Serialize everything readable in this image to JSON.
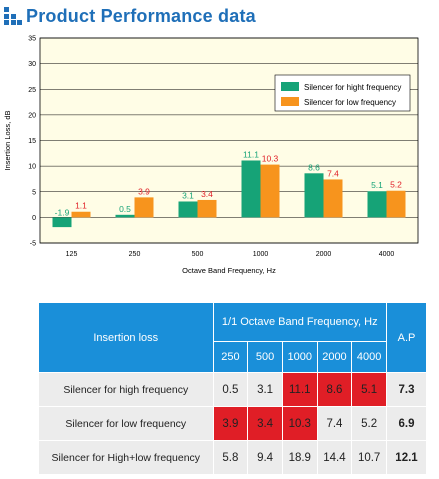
{
  "page": {
    "title": "Product Performance data"
  },
  "colors": {
    "high": "#16a377",
    "low": "#f7941d",
    "grid": "#000000",
    "plot_bg": "#fffde6",
    "title_blue": "#1f6fb8",
    "table_header": "#1a8fd9",
    "highlight": "#e01e26"
  },
  "chart_data": {
    "type": "bar",
    "xlabel": "Octave Band Frequency, Hz",
    "ylabel": "Insertion Loss, dB",
    "categories": [
      "125",
      "250",
      "500",
      "1000",
      "2000",
      "4000"
    ],
    "ylim": [
      -5,
      35
    ],
    "yticks": [
      "-5",
      "0",
      "5",
      "10",
      "15",
      "20",
      "25",
      "30",
      "35"
    ],
    "grid": true,
    "legend_position": "top-right",
    "series": [
      {
        "name": "Silencer for hight frequency",
        "values": [
          -1.9,
          0.5,
          3.1,
          11.1,
          8.6,
          5.1
        ],
        "labels": [
          "-1.9",
          "0.5",
          "3.1",
          "11.1",
          "8.6",
          "5.1"
        ]
      },
      {
        "name": "Silencer for low frequency",
        "values": [
          1.1,
          3.9,
          3.4,
          10.3,
          7.4,
          5.2
        ],
        "labels": [
          "1.1",
          "3.9",
          "3.4",
          "10.3",
          "7.4",
          "5.2"
        ]
      }
    ]
  },
  "table": {
    "header_left": "Insertion loss",
    "header_band": "1/1 Octave Band Frequency, Hz",
    "header_ap": "A.P",
    "frequencies": [
      "250",
      "500",
      "1000",
      "2000",
      "4000"
    ],
    "rows": [
      {
        "label": "Silencer for high frequency",
        "values": [
          "0.5",
          "3.1",
          "11.1",
          "8.6",
          "5.1"
        ],
        "ap": "7.3"
      },
      {
        "label": "Silencer for low frequency",
        "values": [
          "3.9",
          "3.4",
          "10.3",
          "7.4",
          "5.2"
        ],
        "ap": "6.9"
      },
      {
        "label": "Silencer for High+low frequency",
        "values": [
          "5.8",
          "9.4",
          "18.9",
          "14.4",
          "10.7"
        ],
        "ap": "12.1"
      }
    ],
    "highlighted": [
      [
        false,
        false,
        true,
        true,
        true
      ],
      [
        true,
        true,
        true,
        false,
        false
      ],
      [
        false,
        false,
        false,
        false,
        false
      ]
    ]
  }
}
